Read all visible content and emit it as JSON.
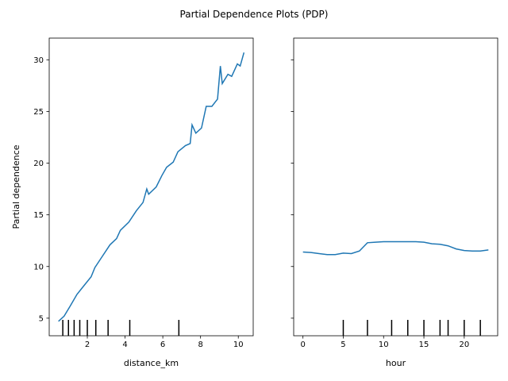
{
  "title": "Partial Dependence Plots (PDP)",
  "chart_data": [
    {
      "type": "line",
      "xlabel": "distance_km",
      "ylabel": "Partial dependence",
      "color": "#1f77b4",
      "x": [
        0.47,
        0.77,
        1.1,
        1.45,
        1.8,
        2.2,
        2.4,
        2.8,
        3.2,
        3.55,
        3.75,
        4.2,
        4.6,
        4.95,
        5.15,
        5.25,
        5.65,
        5.95,
        6.2,
        6.55,
        6.8,
        7.2,
        7.45,
        7.55,
        7.75,
        8.05,
        8.3,
        8.6,
        8.9,
        9.05,
        9.15,
        9.45,
        9.65,
        9.95,
        10.1,
        10.3
      ],
      "values": [
        4.7,
        5.2,
        6.2,
        7.3,
        8.1,
        9.0,
        9.9,
        11.0,
        12.1,
        12.7,
        13.5,
        14.3,
        15.4,
        16.2,
        17.5,
        17.0,
        17.7,
        18.8,
        19.6,
        20.1,
        21.1,
        21.7,
        21.9,
        23.7,
        22.9,
        23.4,
        25.5,
        25.5,
        26.2,
        29.4,
        27.7,
        28.6,
        28.4,
        29.6,
        29.4,
        30.7
      ],
      "deciles": [
        0.7,
        1.0,
        1.3,
        1.6,
        2.0,
        2.45,
        3.1,
        4.25,
        6.85
      ],
      "xlim": [
        -0.02,
        10.79
      ],
      "xticks": [
        2,
        4,
        6,
        8,
        10
      ],
      "ylim": [
        3.3,
        32.1
      ],
      "yticks": [
        5,
        10,
        15,
        20,
        25,
        30
      ]
    },
    {
      "type": "line",
      "xlabel": "hour",
      "color": "#1f77b4",
      "x": [
        0,
        1,
        2,
        3,
        4,
        5,
        6,
        7,
        8,
        9,
        10,
        11,
        12,
        13,
        14,
        15,
        16,
        17,
        18,
        19,
        20,
        21,
        22,
        23
      ],
      "values": [
        11.4,
        11.35,
        11.25,
        11.15,
        11.15,
        11.3,
        11.25,
        11.5,
        12.3,
        12.35,
        12.4,
        12.4,
        12.4,
        12.4,
        12.4,
        12.35,
        12.2,
        12.15,
        12.0,
        11.7,
        11.55,
        11.5,
        11.5,
        11.6
      ],
      "deciles": [
        5,
        8,
        11,
        13,
        15,
        17,
        18,
        20,
        22
      ],
      "xlim": [
        -1.15,
        24.15
      ],
      "xticks": [
        0,
        5,
        10,
        15,
        20
      ]
    }
  ]
}
